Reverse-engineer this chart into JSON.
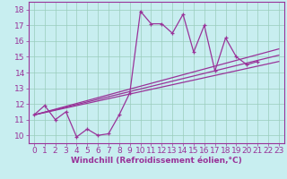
{
  "title": "",
  "xlabel": "Windchill (Refroidissement éolien,°C)",
  "bg_color": "#c8eef0",
  "line_color": "#993399",
  "grid_color": "#99ccbb",
  "xlim": [
    -0.5,
    23.5
  ],
  "ylim": [
    9.5,
    18.5
  ],
  "xticks": [
    0,
    1,
    2,
    3,
    4,
    5,
    6,
    7,
    8,
    9,
    10,
    11,
    12,
    13,
    14,
    15,
    16,
    17,
    18,
    19,
    20,
    21,
    22,
    23
  ],
  "yticks": [
    10,
    11,
    12,
    13,
    14,
    15,
    16,
    17,
    18
  ],
  "main_series_x": [
    0,
    1,
    2,
    3,
    4,
    5,
    6,
    7,
    8,
    9,
    10,
    11,
    12,
    13,
    14,
    15,
    16,
    17,
    18,
    19,
    20,
    21
  ],
  "main_series_y": [
    11.3,
    11.9,
    11.0,
    11.5,
    9.9,
    10.4,
    10.0,
    10.1,
    11.3,
    12.7,
    17.9,
    17.1,
    17.1,
    16.5,
    17.7,
    15.3,
    17.0,
    14.1,
    16.2,
    15.0,
    14.5,
    14.7
  ],
  "trend_lines": [
    {
      "x": [
        0,
        23
      ],
      "y": [
        11.3,
        14.7
      ]
    },
    {
      "x": [
        0,
        23
      ],
      "y": [
        11.3,
        15.1
      ]
    },
    {
      "x": [
        0,
        23
      ],
      "y": [
        11.3,
        15.5
      ]
    }
  ],
  "tick_fontsize": 6.5,
  "xlabel_fontsize": 6.5
}
